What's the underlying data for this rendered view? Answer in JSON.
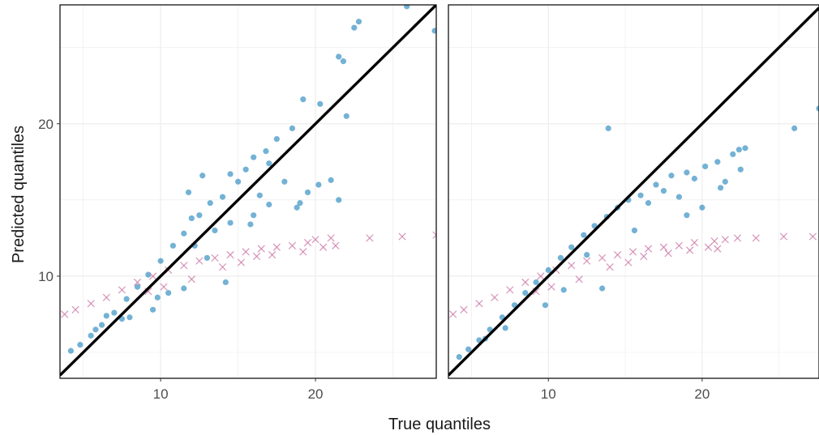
{
  "figure": {
    "xlabel": "True quantiles",
    "ylabel": "Predicted quantiles",
    "colors": {
      "blue": "#0072B2",
      "pink": "#CC79A7",
      "line": "#000000",
      "grid": "#EBEBEB"
    }
  },
  "chart_data": [
    {
      "type": "scatter",
      "panel": "left",
      "xlabel": "True quantiles",
      "ylabel": "Predicted quantiles",
      "xlim": [
        3.5,
        27.8
      ],
      "ylim": [
        3.3,
        27.8
      ],
      "x_ticks": [
        10,
        20
      ],
      "y_ticks": [
        10,
        20
      ],
      "grid": true,
      "reference_line": {
        "type": "identity",
        "slope": 1,
        "intercept": 0
      },
      "series": [
        {
          "marker": "circle",
          "color": "#0072B2",
          "points": [
            [
              4.2,
              5.1
            ],
            [
              4.8,
              5.5
            ],
            [
              5.5,
              6.1
            ],
            [
              6.2,
              6.8
            ],
            [
              7.0,
              7.6
            ],
            [
              7.8,
              8.5
            ],
            [
              8.5,
              9.3
            ],
            [
              9.2,
              10.1
            ],
            [
              10.0,
              11.0
            ],
            [
              10.8,
              12.0
            ],
            [
              11.5,
              12.8
            ],
            [
              12.5,
              14.0
            ],
            [
              13.2,
              14.8
            ],
            [
              14.0,
              15.2
            ],
            [
              15.0,
              16.2
            ],
            [
              15.5,
              17.0
            ],
            [
              16.8,
              18.2
            ],
            [
              17.5,
              19.0
            ],
            [
              18.5,
              19.7
            ],
            [
              19.2,
              21.6
            ],
            [
              20.3,
              21.3
            ],
            [
              21.5,
              24.4
            ],
            [
              21.8,
              24.1
            ],
            [
              22.0,
              20.5
            ],
            [
              22.5,
              26.3
            ],
            [
              22.8,
              26.7
            ],
            [
              25.9,
              27.7
            ],
            [
              27.7,
              26.1
            ],
            [
              14.5,
              16.7
            ],
            [
              16.0,
              17.8
            ],
            [
              17.0,
              17.4
            ],
            [
              18.0,
              16.2
            ],
            [
              19.5,
              15.5
            ],
            [
              20.2,
              16.0
            ],
            [
              21.0,
              16.3
            ],
            [
              21.5,
              15.0
            ],
            [
              12.0,
              13.8
            ],
            [
              13.5,
              13.0
            ],
            [
              14.5,
              13.5
            ],
            [
              16.0,
              14.0
            ],
            [
              17.0,
              14.7
            ],
            [
              9.5,
              7.8
            ],
            [
              11.5,
              9.2
            ],
            [
              8.0,
              7.3
            ],
            [
              7.5,
              7.2
            ],
            [
              14.2,
              9.6
            ],
            [
              6.5,
              7.4
            ],
            [
              5.8,
              6.5
            ],
            [
              11.8,
              15.5
            ],
            [
              12.7,
              16.6
            ],
            [
              18.8,
              14.5
            ],
            [
              19.0,
              14.8
            ],
            [
              9.8,
              8.6
            ],
            [
              10.5,
              8.9
            ],
            [
              13.0,
              11.2
            ],
            [
              15.8,
              13.4
            ],
            [
              12.2,
              12.0
            ],
            [
              16.4,
              15.3
            ]
          ]
        },
        {
          "marker": "x",
          "color": "#CC79A7",
          "points": [
            [
              3.8,
              7.5
            ],
            [
              4.5,
              7.8
            ],
            [
              5.5,
              8.2
            ],
            [
              6.5,
              8.6
            ],
            [
              7.5,
              9.1
            ],
            [
              8.5,
              9.6
            ],
            [
              9.5,
              10.0
            ],
            [
              10.5,
              10.4
            ],
            [
              11.5,
              10.7
            ],
            [
              12.5,
              11.0
            ],
            [
              13.5,
              11.2
            ],
            [
              14.5,
              11.4
            ],
            [
              15.5,
              11.6
            ],
            [
              16.5,
              11.8
            ],
            [
              17.5,
              11.9
            ],
            [
              18.5,
              12.0
            ],
            [
              19.5,
              12.2
            ],
            [
              20.0,
              12.4
            ],
            [
              21.0,
              12.5
            ],
            [
              23.5,
              12.5
            ],
            [
              25.6,
              12.6
            ],
            [
              27.8,
              12.7
            ],
            [
              19.2,
              11.6
            ],
            [
              20.5,
              11.9
            ],
            [
              21.3,
              12.0
            ],
            [
              14.0,
              10.6
            ],
            [
              15.2,
              10.9
            ],
            [
              16.2,
              11.3
            ],
            [
              17.2,
              11.4
            ],
            [
              12.0,
              9.8
            ],
            [
              10.2,
              9.3
            ],
            [
              9.2,
              9.0
            ]
          ]
        }
      ]
    },
    {
      "type": "scatter",
      "panel": "right",
      "xlabel": "True quantiles",
      "ylabel": "Predicted quantiles",
      "xlim": [
        3.5,
        27.6
      ],
      "ylim": [
        3.3,
        27.8
      ],
      "x_ticks": [
        10,
        20
      ],
      "y_ticks": [
        10,
        20
      ],
      "grid": true,
      "reference_line": {
        "type": "identity",
        "slope": 1,
        "intercept": 0
      },
      "series": [
        {
          "marker": "circle",
          "color": "#0072B2",
          "points": [
            [
              4.2,
              4.7
            ],
            [
              4.8,
              5.2
            ],
            [
              5.5,
              5.8
            ],
            [
              6.2,
              6.5
            ],
            [
              7.0,
              7.3
            ],
            [
              7.8,
              8.1
            ],
            [
              8.5,
              8.9
            ],
            [
              9.2,
              9.6
            ],
            [
              10.0,
              10.4
            ],
            [
              10.8,
              11.2
            ],
            [
              11.5,
              11.9
            ],
            [
              12.3,
              12.7
            ],
            [
              13.0,
              13.3
            ],
            [
              13.8,
              13.9
            ],
            [
              14.5,
              14.5
            ],
            [
              15.2,
              15.0
            ],
            [
              16.0,
              15.3
            ],
            [
              17.0,
              16.0
            ],
            [
              18.0,
              16.6
            ],
            [
              19.0,
              16.8
            ],
            [
              19.5,
              16.4
            ],
            [
              20.2,
              17.2
            ],
            [
              21.0,
              17.5
            ],
            [
              21.5,
              16.2
            ],
            [
              22.0,
              18.0
            ],
            [
              22.4,
              18.3
            ],
            [
              22.8,
              18.4
            ],
            [
              22.5,
              17.0
            ],
            [
              21.2,
              15.8
            ],
            [
              20.0,
              14.5
            ],
            [
              19.0,
              14.0
            ],
            [
              13.9,
              19.7
            ],
            [
              26.0,
              19.7
            ],
            [
              27.6,
              21.0
            ],
            [
              17.5,
              15.6
            ],
            [
              16.5,
              14.8
            ],
            [
              18.5,
              15.2
            ],
            [
              9.8,
              8.1
            ],
            [
              11.0,
              9.1
            ],
            [
              12.5,
              11.4
            ],
            [
              13.5,
              9.2
            ],
            [
              7.2,
              6.6
            ],
            [
              5.9,
              5.9
            ],
            [
              15.6,
              13.0
            ]
          ]
        },
        {
          "marker": "x",
          "color": "#CC79A7",
          "points": [
            [
              3.8,
              7.5
            ],
            [
              4.5,
              7.8
            ],
            [
              5.5,
              8.2
            ],
            [
              6.5,
              8.6
            ],
            [
              7.5,
              9.1
            ],
            [
              8.5,
              9.6
            ],
            [
              9.5,
              10.0
            ],
            [
              10.5,
              10.4
            ],
            [
              11.5,
              10.7
            ],
            [
              12.5,
              11.0
            ],
            [
              13.5,
              11.2
            ],
            [
              14.5,
              11.4
            ],
            [
              15.5,
              11.6
            ],
            [
              16.5,
              11.8
            ],
            [
              17.5,
              11.9
            ],
            [
              18.5,
              12.0
            ],
            [
              19.5,
              12.2
            ],
            [
              20.8,
              12.3
            ],
            [
              21.5,
              12.4
            ],
            [
              22.3,
              12.5
            ],
            [
              23.5,
              12.5
            ],
            [
              25.3,
              12.6
            ],
            [
              27.2,
              12.6
            ],
            [
              19.2,
              11.7
            ],
            [
              20.4,
              11.9
            ],
            [
              21.0,
              11.8
            ],
            [
              14.0,
              10.6
            ],
            [
              15.2,
              10.9
            ],
            [
              16.2,
              11.3
            ],
            [
              12.0,
              9.8
            ],
            [
              10.2,
              9.3
            ],
            [
              9.2,
              9.0
            ],
            [
              17.8,
              11.5
            ]
          ]
        }
      ]
    }
  ]
}
